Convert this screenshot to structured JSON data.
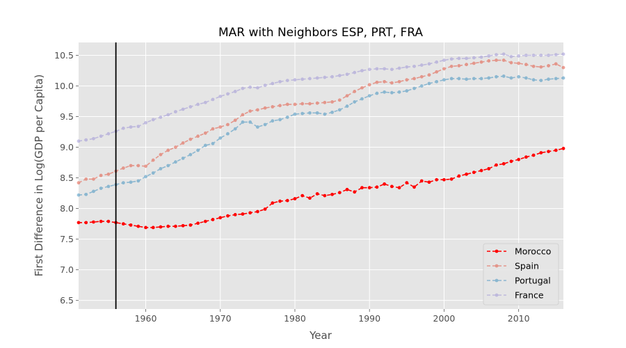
{
  "chart_data": {
    "type": "line",
    "title": "MAR with Neighbors ESP, PRT, FRA",
    "xlabel": "Year",
    "ylabel": "First Difference in Log(GDP per Capita)",
    "xlim": [
      1951,
      2016
    ],
    "ylim": [
      6.36,
      10.71
    ],
    "xticks": [
      1960,
      1970,
      1980,
      1990,
      2000,
      2010
    ],
    "yticks": [
      6.5,
      7.0,
      7.5,
      8.0,
      8.5,
      9.0,
      9.5,
      10.0,
      10.5
    ],
    "grid": true,
    "legend_position": "lower-right",
    "vertical_line": 1956,
    "x": [
      1951,
      1952,
      1953,
      1954,
      1955,
      1956,
      1957,
      1958,
      1959,
      1960,
      1961,
      1962,
      1963,
      1964,
      1965,
      1966,
      1967,
      1968,
      1969,
      1970,
      1971,
      1972,
      1973,
      1974,
      1975,
      1976,
      1977,
      1978,
      1979,
      1980,
      1981,
      1982,
      1983,
      1984,
      1985,
      1986,
      1987,
      1988,
      1989,
      1990,
      1991,
      1992,
      1993,
      1994,
      1995,
      1996,
      1997,
      1998,
      1999,
      2000,
      2001,
      2002,
      2003,
      2004,
      2005,
      2006,
      2007,
      2008,
      2009,
      2010,
      2011,
      2012,
      2013,
      2014,
      2015,
      2016
    ],
    "series": [
      {
        "name": "Morocco",
        "color": "#ff0000",
        "alpha": 1.0,
        "values": [
          7.77,
          7.77,
          7.78,
          7.79,
          7.79,
          7.77,
          7.75,
          7.73,
          7.71,
          7.69,
          7.69,
          7.7,
          7.71,
          7.71,
          7.72,
          7.73,
          7.76,
          7.79,
          7.82,
          7.85,
          7.88,
          7.9,
          7.91,
          7.93,
          7.95,
          7.99,
          8.09,
          8.12,
          8.13,
          8.16,
          8.21,
          8.17,
          8.24,
          8.21,
          8.23,
          8.26,
          8.31,
          8.27,
          8.34,
          8.34,
          8.35,
          8.4,
          8.36,
          8.34,
          8.42,
          8.35,
          8.45,
          8.43,
          8.47,
          8.47,
          8.48,
          8.53,
          8.56,
          8.59,
          8.62,
          8.65,
          8.71,
          8.73,
          8.77,
          8.8,
          8.84,
          8.87,
          8.91,
          8.93,
          8.95,
          8.98
        ]
      },
      {
        "name": "Spain",
        "color": "#e24a33",
        "alpha": 0.5,
        "values": [
          8.42,
          8.48,
          8.48,
          8.54,
          8.56,
          8.61,
          8.66,
          8.7,
          8.7,
          8.69,
          8.79,
          8.88,
          8.95,
          9.0,
          9.07,
          9.13,
          9.18,
          9.23,
          9.3,
          9.33,
          9.37,
          9.44,
          9.53,
          9.59,
          9.61,
          9.64,
          9.66,
          9.68,
          9.7,
          9.7,
          9.71,
          9.71,
          9.72,
          9.73,
          9.74,
          9.77,
          9.84,
          9.91,
          9.97,
          10.02,
          10.06,
          10.07,
          10.05,
          10.07,
          10.1,
          10.12,
          10.15,
          10.18,
          10.23,
          10.28,
          10.32,
          10.33,
          10.35,
          10.37,
          10.39,
          10.41,
          10.42,
          10.42,
          10.38,
          10.37,
          10.35,
          10.32,
          10.31,
          10.33,
          10.36,
          10.3
        ]
      },
      {
        "name": "Portugal",
        "color": "#348abd",
        "alpha": 0.5,
        "values": [
          8.22,
          8.23,
          8.28,
          8.33,
          8.36,
          8.39,
          8.42,
          8.43,
          8.45,
          8.52,
          8.58,
          8.65,
          8.7,
          8.76,
          8.82,
          8.88,
          8.95,
          9.03,
          9.06,
          9.15,
          9.22,
          9.3,
          9.41,
          9.41,
          9.33,
          9.37,
          9.43,
          9.45,
          9.49,
          9.54,
          9.55,
          9.56,
          9.56,
          9.54,
          9.57,
          9.61,
          9.67,
          9.74,
          9.79,
          9.84,
          9.88,
          9.9,
          9.89,
          9.9,
          9.92,
          9.96,
          10.0,
          10.04,
          10.07,
          10.1,
          10.12,
          10.12,
          10.11,
          10.12,
          10.12,
          10.13,
          10.15,
          10.16,
          10.13,
          10.15,
          10.13,
          10.1,
          10.09,
          10.11,
          10.12,
          10.13
        ]
      },
      {
        "name": "France",
        "color": "#988ed5",
        "alpha": 0.5,
        "values": [
          9.1,
          9.12,
          9.14,
          9.18,
          9.22,
          9.26,
          9.31,
          9.33,
          9.34,
          9.4,
          9.45,
          9.49,
          9.53,
          9.58,
          9.62,
          9.66,
          9.7,
          9.73,
          9.78,
          9.83,
          9.87,
          9.91,
          9.96,
          9.98,
          9.97,
          10.01,
          10.04,
          10.07,
          10.09,
          10.1,
          10.11,
          10.12,
          10.13,
          10.14,
          10.15,
          10.17,
          10.19,
          10.22,
          10.25,
          10.27,
          10.28,
          10.28,
          10.27,
          10.29,
          10.31,
          10.32,
          10.34,
          10.36,
          10.39,
          10.42,
          10.44,
          10.45,
          10.45,
          10.46,
          10.47,
          10.49,
          10.51,
          10.52,
          10.48,
          10.49,
          10.5,
          10.5,
          10.5,
          10.5,
          10.51,
          10.52
        ]
      }
    ]
  }
}
